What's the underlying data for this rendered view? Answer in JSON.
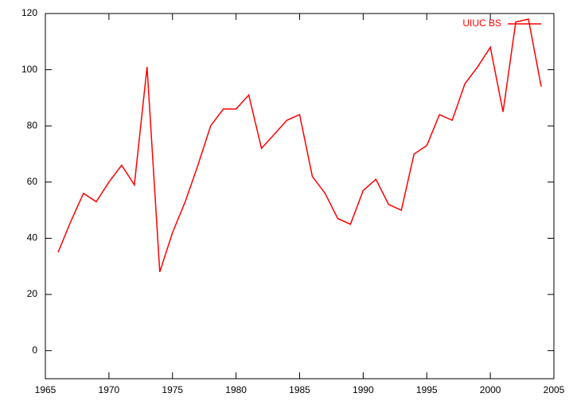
{
  "chart_data": {
    "type": "line",
    "x": [
      1966,
      1967,
      1968,
      1969,
      1970,
      1971,
      1972,
      1973,
      1974,
      1975,
      1976,
      1977,
      1978,
      1979,
      1980,
      1981,
      1982,
      1983,
      1984,
      1985,
      1986,
      1987,
      1988,
      1989,
      1990,
      1991,
      1992,
      1993,
      1994,
      1995,
      1996,
      1997,
      1998,
      1999,
      2000,
      2001,
      2002,
      2003,
      2004
    ],
    "series": [
      {
        "name": "UIUC BS",
        "color": "#ff0000",
        "values": [
          35,
          46,
          56,
          53,
          60,
          66,
          59,
          101,
          28,
          42,
          53,
          66,
          80,
          86,
          86,
          91,
          72,
          77,
          82,
          84,
          62,
          56,
          47,
          45,
          57,
          61,
          52,
          50,
          70,
          73,
          84,
          82,
          95,
          101,
          108,
          85,
          117,
          118,
          94
        ]
      }
    ],
    "xlim": [
      1965,
      2005
    ],
    "xticks": [
      1965,
      1970,
      1975,
      1980,
      1985,
      1990,
      1995,
      2000,
      2005
    ],
    "ylim": [
      -10,
      120
    ],
    "yticks": [
      0,
      20,
      40,
      60,
      80,
      100,
      120
    ],
    "legend": "top right"
  }
}
